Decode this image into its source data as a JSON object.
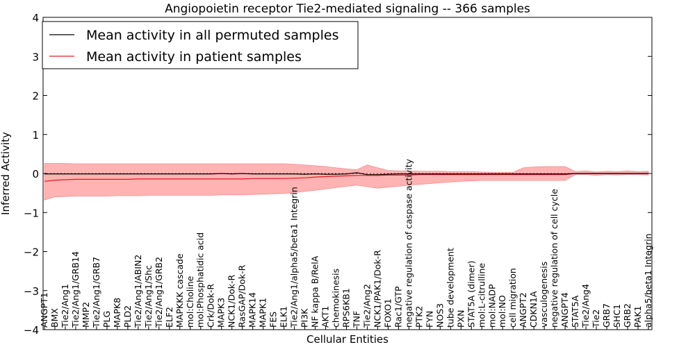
{
  "chart_data": {
    "type": "line",
    "title": "Angiopoietin receptor Tie2-mediated signaling -- 366 samples",
    "xlabel": "Cellular Entities",
    "ylabel": "Inferred Activity",
    "ylim": [
      -4,
      4
    ],
    "yticks": [
      -4,
      -3,
      -2,
      -1,
      0,
      1,
      2,
      3,
      4
    ],
    "ytick_labels": [
      "−4",
      "−3",
      "−2",
      "−1",
      "0",
      "1",
      "2",
      "3",
      "4"
    ],
    "grid": false,
    "legend_position": "top-left",
    "reference_line": 0,
    "colors": {
      "permuted": "#000000",
      "patient": "#e31a1c",
      "band": "#ff8080"
    },
    "categories": [
      "ANGPT1",
      "BMX",
      "Tie2/Ang1",
      "Tie2/Ang1/GRB14",
      "MMP2",
      "Tie2/Ang1/GRB7",
      "PLG",
      "MAPK8",
      "PLD2",
      "Tie2/Ang1/ABIN2",
      "Tie2/Ang1/Shc",
      "Tie2/Ang1/GRB2",
      "ELF2",
      "MAPKKK cascade",
      "mol:Choline",
      "mol:Phosphatidic acid",
      "Crk/Dok-R",
      "MAPK3",
      "NCK1/Dok-R",
      "RasGAP/Dok-R",
      "MAPK14",
      "MAPK1",
      "FES",
      "ELK1",
      "Tie2/Ang1/alpha5/beta1 Integrin",
      "PI3K",
      "NF kappa B/RelA",
      "AKT1",
      "chemokinesis",
      "RPS6KB1",
      "TNF",
      "Tie2/Ang2",
      "NCK1/PAK1/Dok-R",
      "FOXO1",
      "Rac1/GTP",
      "negative regulation of caspase activity",
      "PTK2",
      "FYN",
      "NOS3",
      "tube development",
      "PXN",
      "STAT5A (dimer)",
      "mol:L-citrulline",
      "mol:NADP",
      "mol:NO",
      "cell migration",
      "ANGPT2",
      "CDKN1A",
      "vasculogenesis",
      "negative regulation of cell cycle",
      "ANGPT4",
      "STAT5A",
      "Tie2/Ang4",
      "Tie2",
      "GRB7",
      "SHC1",
      "GRB2",
      "PAK1",
      "alpha5/beta1 Integrin"
    ],
    "series": [
      {
        "name": "Mean activity in all permuted samples",
        "values": [
          -0.01,
          -0.01,
          -0.01,
          -0.01,
          -0.01,
          -0.01,
          -0.01,
          -0.01,
          -0.01,
          -0.01,
          -0.01,
          -0.01,
          -0.01,
          -0.01,
          -0.01,
          -0.01,
          -0.01,
          0.0,
          -0.01,
          0.0,
          -0.01,
          -0.01,
          -0.01,
          -0.01,
          -0.01,
          -0.02,
          -0.01,
          -0.02,
          -0.02,
          -0.01,
          0.02,
          -0.03,
          -0.03,
          -0.02,
          -0.01,
          -0.01,
          -0.01,
          -0.01,
          -0.01,
          -0.01,
          -0.01,
          -0.01,
          -0.01,
          -0.01,
          -0.01,
          -0.01,
          -0.01,
          -0.01,
          -0.01,
          -0.01,
          -0.01,
          0.0,
          0.0,
          0.0,
          0.0,
          0.0,
          0.0,
          0.0,
          0.0
        ]
      },
      {
        "name": "Mean activity in patient samples",
        "values": [
          -0.2,
          -0.17,
          -0.16,
          -0.15,
          -0.15,
          -0.15,
          -0.15,
          -0.15,
          -0.15,
          -0.14,
          -0.14,
          -0.14,
          -0.14,
          -0.14,
          -0.14,
          -0.14,
          -0.14,
          -0.14,
          -0.14,
          -0.14,
          -0.13,
          -0.13,
          -0.13,
          -0.13,
          -0.12,
          -0.11,
          -0.09,
          -0.08,
          -0.07,
          -0.06,
          -0.05,
          -0.05,
          -0.05,
          -0.04,
          -0.04,
          -0.04,
          -0.03,
          -0.03,
          -0.03,
          -0.03,
          -0.03,
          -0.03,
          -0.03,
          -0.03,
          -0.03,
          -0.03,
          -0.03,
          -0.03,
          -0.03,
          -0.03,
          -0.03,
          0.0,
          0.0,
          0.0,
          0.0,
          0.0,
          0.0,
          0.0,
          0.0
        ],
        "lower": [
          -0.68,
          -0.6,
          -0.59,
          -0.58,
          -0.58,
          -0.58,
          -0.58,
          -0.57,
          -0.57,
          -0.57,
          -0.56,
          -0.56,
          -0.56,
          -0.56,
          -0.56,
          -0.56,
          -0.56,
          -0.55,
          -0.55,
          -0.55,
          -0.54,
          -0.53,
          -0.52,
          -0.51,
          -0.49,
          -0.46,
          -0.43,
          -0.4,
          -0.36,
          -0.33,
          -0.3,
          -0.34,
          -0.38,
          -0.35,
          -0.33,
          -0.3,
          -0.28,
          -0.26,
          -0.24,
          -0.22,
          -0.2,
          -0.19,
          -0.18,
          -0.18,
          -0.18,
          -0.18,
          -0.18,
          -0.18,
          -0.18,
          -0.18,
          -0.18,
          -0.03,
          -0.03,
          -0.05,
          -0.03,
          -0.04,
          -0.03,
          -0.03,
          -0.04
        ],
        "upper": [
          0.26,
          0.26,
          0.26,
          0.25,
          0.25,
          0.25,
          0.25,
          0.25,
          0.25,
          0.25,
          0.25,
          0.25,
          0.25,
          0.25,
          0.25,
          0.25,
          0.25,
          0.25,
          0.25,
          0.25,
          0.25,
          0.25,
          0.25,
          0.25,
          0.24,
          0.22,
          0.2,
          0.18,
          0.15,
          0.12,
          0.1,
          0.22,
          0.15,
          0.08,
          0.07,
          0.07,
          0.06,
          0.06,
          0.06,
          0.05,
          0.05,
          0.05,
          0.04,
          0.03,
          0.03,
          0.03,
          0.15,
          0.17,
          0.18,
          0.18,
          0.18,
          0.05,
          0.07,
          0.04,
          0.06,
          0.05,
          0.07,
          0.05,
          0.06
        ]
      }
    ]
  }
}
